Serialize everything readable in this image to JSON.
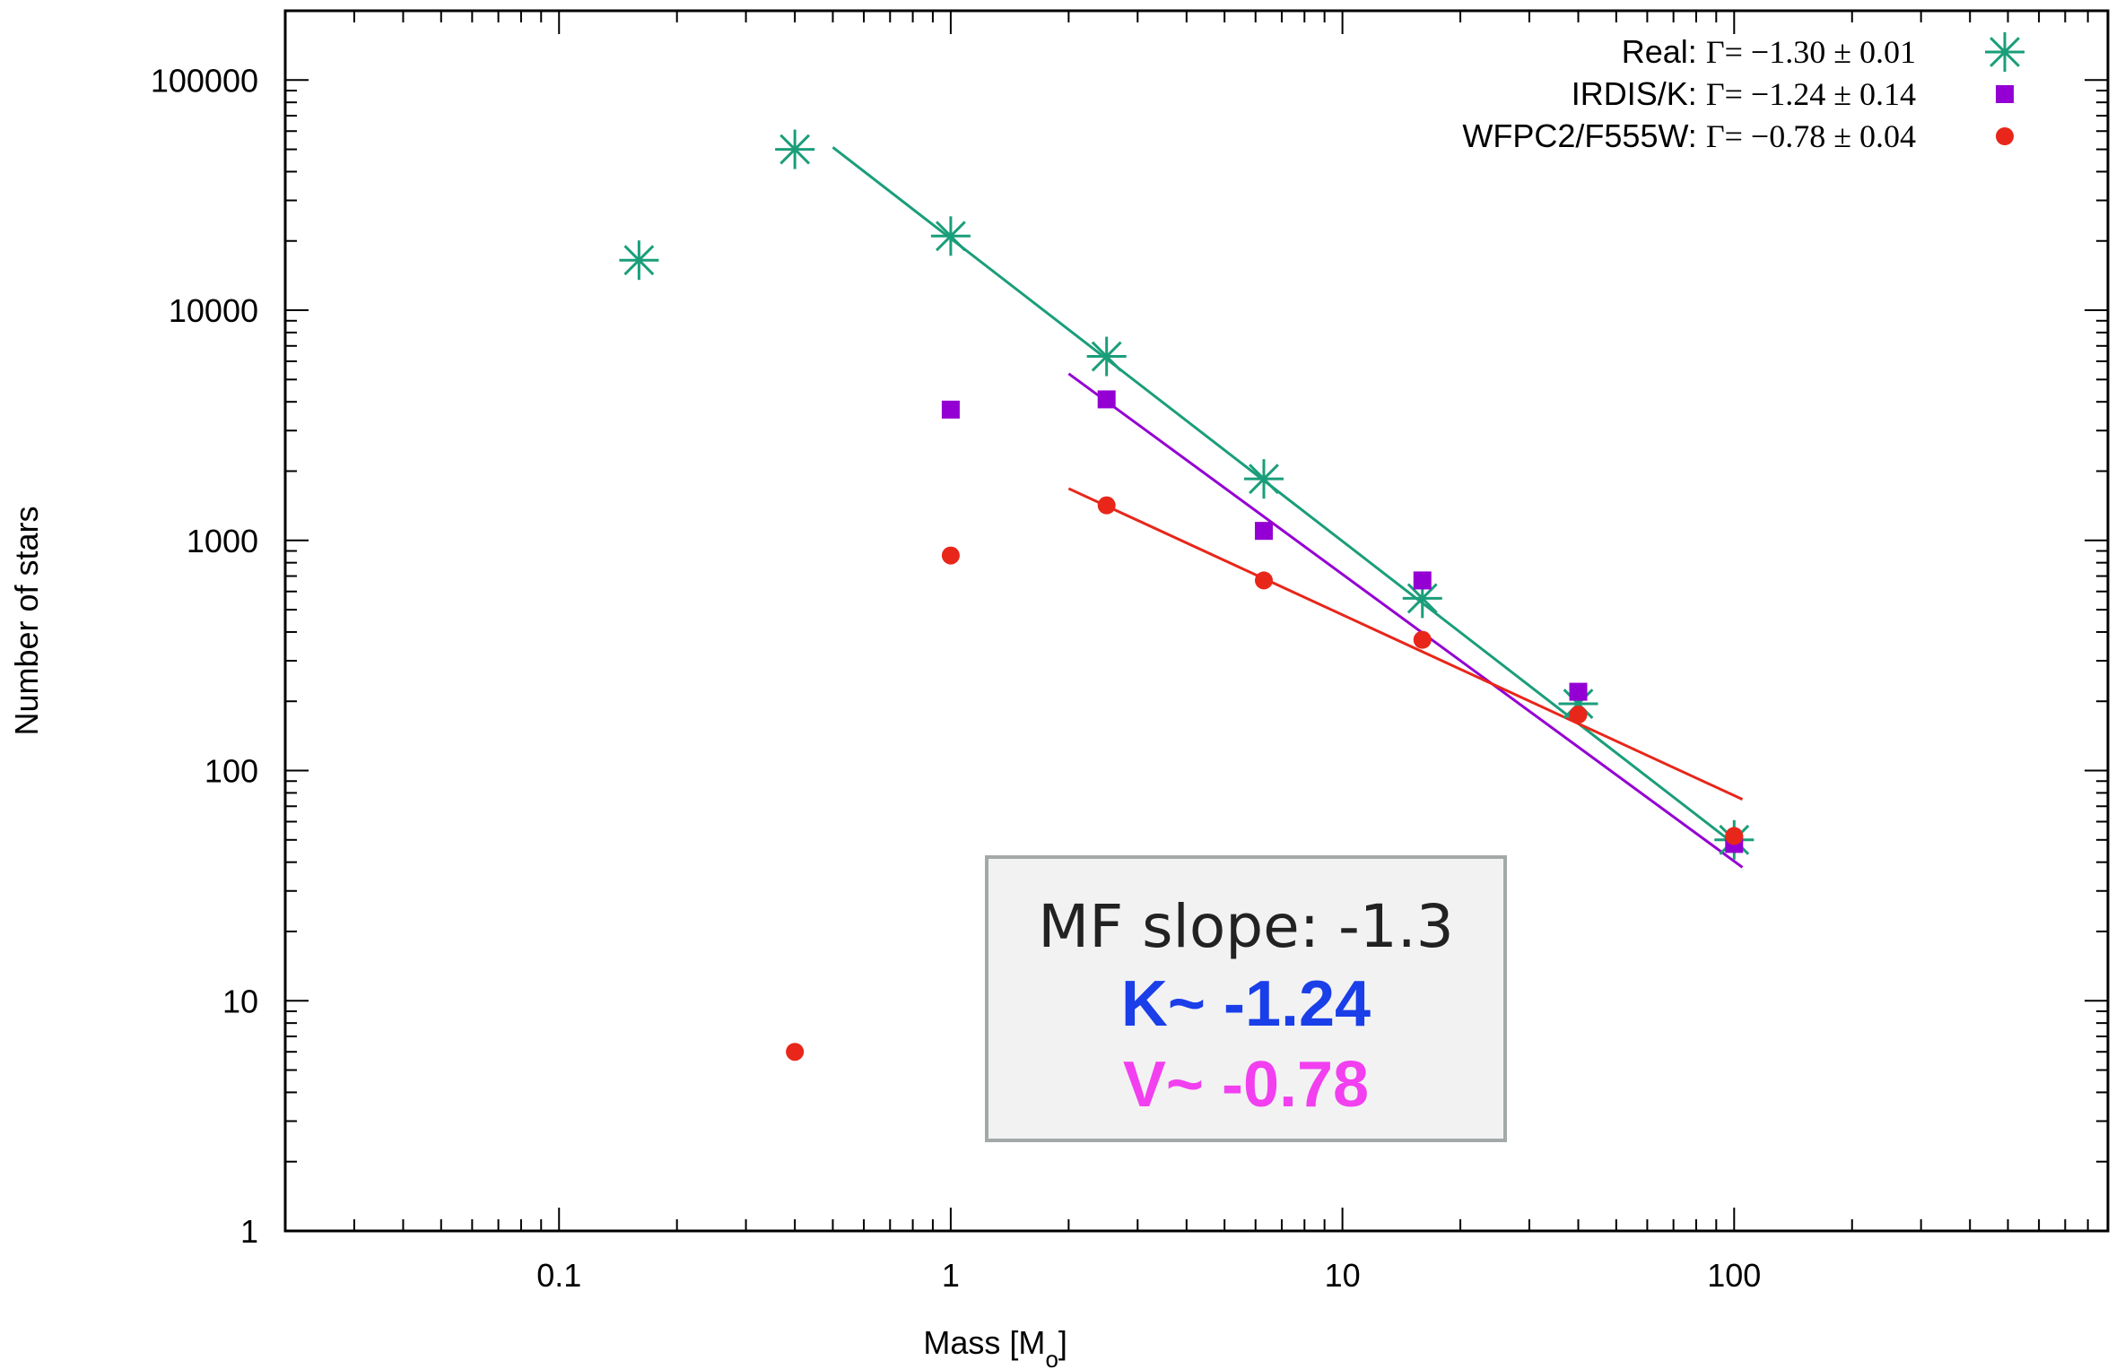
{
  "chart_data": {
    "type": "scatter",
    "xlabel": "Mass [M",
    "xlabel_sub": "o",
    "xlabel_close": "]",
    "ylabel": "Number of stars",
    "xscale": "log",
    "yscale": "log",
    "xlim": [
      0.02,
      900
    ],
    "ylim": [
      1,
      200000
    ],
    "x_ticks": [
      {
        "value": 0.1,
        "label": "0.1"
      },
      {
        "value": 1,
        "label": "1"
      },
      {
        "value": 10,
        "label": "10"
      },
      {
        "value": 100,
        "label": "100"
      }
    ],
    "y_ticks": [
      {
        "value": 1,
        "label": "1"
      },
      {
        "value": 10,
        "label": "10"
      },
      {
        "value": 100,
        "label": "100"
      },
      {
        "value": 1000,
        "label": "1000"
      },
      {
        "value": 10000,
        "label": "10000"
      },
      {
        "value": 100000,
        "label": "100000"
      }
    ],
    "legend_position": "top-right",
    "series": [
      {
        "name": "Real",
        "legend_prefix": "Real:",
        "legend_formula": "Γ= −1.30 ± 0.01",
        "marker": "asterisk",
        "color": "#1a9e7a",
        "points": [
          {
            "x": 0.16,
            "y": 16500
          },
          {
            "x": 0.4,
            "y": 50000
          },
          {
            "x": 1.0,
            "y": 21000
          },
          {
            "x": 2.5,
            "y": 6300
          },
          {
            "x": 6.3,
            "y": 1850
          },
          {
            "x": 16,
            "y": 560
          },
          {
            "x": 40,
            "y": 195
          },
          {
            "x": 100,
            "y": 50
          }
        ],
        "fit": {
          "x": [
            0.5,
            105
          ],
          "y": [
            51000,
            45
          ]
        }
      },
      {
        "name": "IRDIS/K",
        "legend_prefix": "IRDIS/K:",
        "legend_formula": "Γ= −1.24 ± 0.14",
        "marker": "square",
        "color": "#9400d3",
        "points": [
          {
            "x": 1.0,
            "y": 3700
          },
          {
            "x": 2.5,
            "y": 4100
          },
          {
            "x": 6.3,
            "y": 1100
          },
          {
            "x": 16,
            "y": 670
          },
          {
            "x": 40,
            "y": 220
          },
          {
            "x": 100,
            "y": 48
          }
        ],
        "fit": {
          "x": [
            2.0,
            105
          ],
          "y": [
            5300,
            38
          ]
        }
      },
      {
        "name": "WFPC2/F555W",
        "legend_prefix": "WFPC2/F555W:",
        "legend_formula": "Γ= −0.78 ± 0.04",
        "marker": "circle",
        "color": "#e8261a",
        "points": [
          {
            "x": 0.4,
            "y": 6
          },
          {
            "x": 1.0,
            "y": 860
          },
          {
            "x": 2.5,
            "y": 1420
          },
          {
            "x": 6.3,
            "y": 670
          },
          {
            "x": 16,
            "y": 370
          },
          {
            "x": 40,
            "y": 175
          },
          {
            "x": 100,
            "y": 52
          }
        ],
        "fit": {
          "x": [
            2.0,
            105
          ],
          "y": [
            1680,
            75
          ]
        }
      }
    ],
    "annotation": {
      "line1": "MF slope: -1.3",
      "line2": "K~ -1.24",
      "line2_color": "#1a3ee8",
      "line3": "V~ -0.78",
      "line3_color": "#f23ff0"
    }
  }
}
